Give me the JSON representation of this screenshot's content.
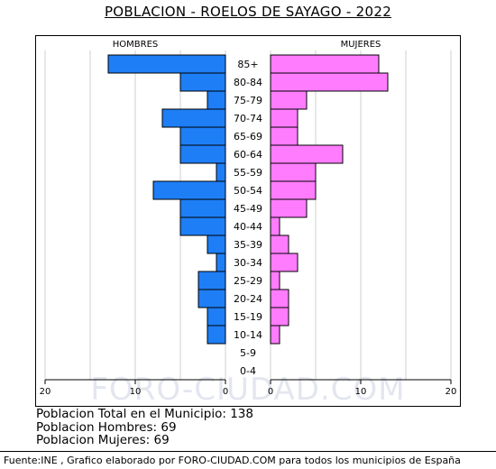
{
  "title": "POBLACION - ROELOS DE SAYAGO - 2022",
  "watermark": "FORO-CIUDAD.COM",
  "stats": {
    "total": "Poblacion Total en el Municipio: 138",
    "hombres": "Poblacion Hombres: 69",
    "mujeres": "Poblacion Mujeres: 69"
  },
  "footer": "Fuente:INE , Grafico elaborado por FORO-CIUDAD.COM para todos los municipios de España",
  "chart_data": {
    "type": "bar",
    "orientation": "population-pyramid",
    "categories": [
      "85+",
      "80-84",
      "75-79",
      "70-74",
      "65-69",
      "60-64",
      "55-59",
      "50-54",
      "45-49",
      "40-44",
      "35-39",
      "30-34",
      "25-29",
      "20-24",
      "15-19",
      "10-14",
      "5-9",
      "0-4"
    ],
    "series": [
      {
        "name": "HOMBRES",
        "color": "#1e7ef6",
        "values": [
          13,
          5,
          2,
          7,
          5,
          5,
          1,
          8,
          5,
          5,
          2,
          1,
          3,
          3,
          2,
          2,
          0,
          0
        ]
      },
      {
        "name": "MUJERES",
        "color": "#ff7cff",
        "values": [
          12,
          13,
          4,
          3,
          3,
          8,
          5,
          5,
          4,
          1,
          2,
          3,
          1,
          2,
          2,
          1,
          0,
          0
        ]
      }
    ],
    "x_ticks_left": [
      "20",
      "10",
      "0"
    ],
    "x_ticks_right": [
      "0",
      "10",
      "20"
    ],
    "xlim": [
      0,
      20
    ],
    "grid": true
  }
}
